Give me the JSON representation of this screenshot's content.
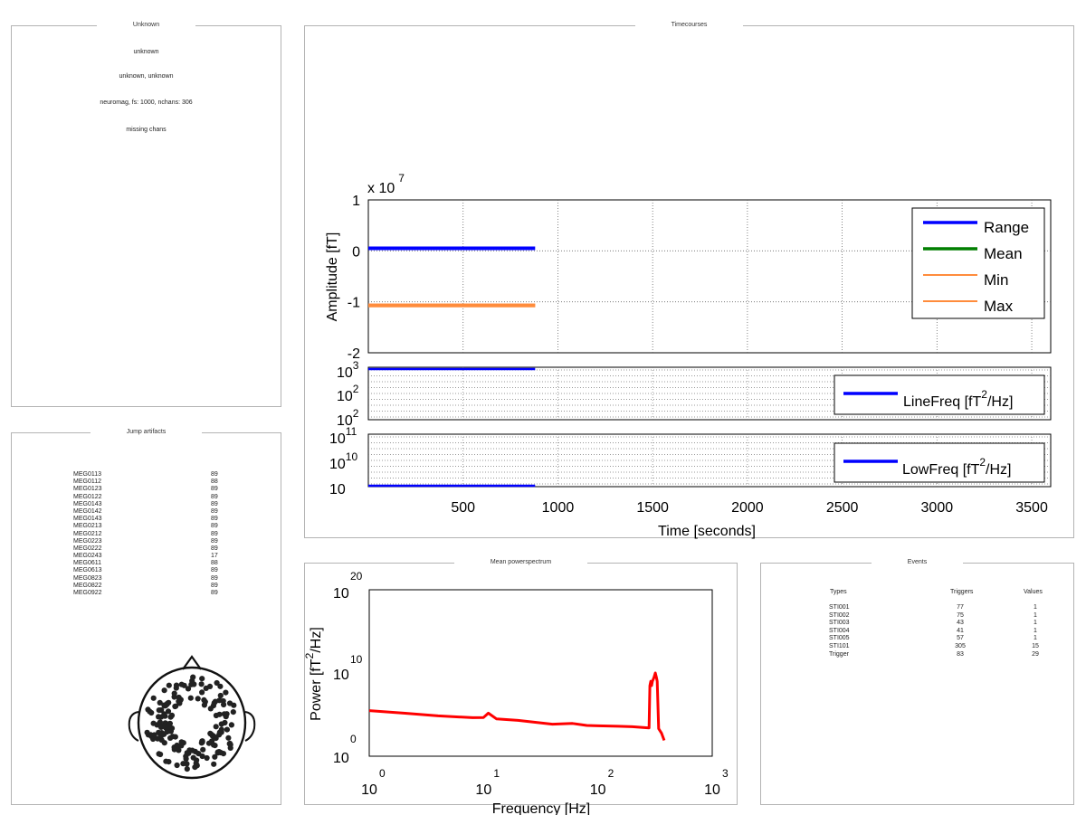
{
  "info_panel": {
    "title": "Unknown",
    "lines": [
      "unknown",
      "unknown, unknown",
      "neuromag, fs: 1000, nchans: 306",
      "missing chans"
    ]
  },
  "artifacts_panel": {
    "title": "Jump artifacts",
    "rows": [
      {
        "channel": "MEG0113",
        "count": "89"
      },
      {
        "channel": "MEG0112",
        "count": "88"
      },
      {
        "channel": "MEG0123",
        "count": "89"
      },
      {
        "channel": "MEG0122",
        "count": "89"
      },
      {
        "channel": "MEG0143",
        "count": "89"
      },
      {
        "channel": "MEG0142",
        "count": "89"
      },
      {
        "channel": "MEG0143",
        "count": "89"
      },
      {
        "channel": "MEG0213",
        "count": "89"
      },
      {
        "channel": "MEG0212",
        "count": "89"
      },
      {
        "channel": "MEG0223",
        "count": "89"
      },
      {
        "channel": "MEG0222",
        "count": "89"
      },
      {
        "channel": "MEG0243",
        "count": "17"
      },
      {
        "channel": "MEG0611",
        "count": "88"
      },
      {
        "channel": "MEG0613",
        "count": "89"
      },
      {
        "channel": "MEG0823",
        "count": "89"
      },
      {
        "channel": "MEG0822",
        "count": "89"
      },
      {
        "channel": "MEG0922",
        "count": "89"
      }
    ]
  },
  "timecourse_panel": {
    "title": "Timecourses",
    "exponent_label": "x 10",
    "exponent_sup": "7",
    "ylabel": "Amplitude [fT]",
    "xlabel": "Time [seconds]",
    "yticks_amp": [
      "1",
      "0",
      "-1",
      "-2"
    ],
    "xticks": [
      "500",
      "1000",
      "1500",
      "2000",
      "2500",
      "3000",
      "3500"
    ],
    "linefreq_ticks": [
      {
        "base": "10",
        "exp": "3"
      },
      {
        "base": "10",
        "exp": "2"
      },
      {
        "base": "10",
        "exp": "2"
      }
    ],
    "lowfreq_ticks": [
      {
        "base": "10",
        "exp": "11"
      },
      {
        "base": "10",
        "exp": "10"
      },
      {
        "base": "10",
        "exp": ""
      }
    ],
    "legend_linefreq": {
      "pre": "LineFreq [fT",
      "sup": "2",
      "post": "/Hz]"
    },
    "legend_lowfreq": {
      "pre": "LowFreq [fT",
      "sup": "2",
      "post": "/Hz]"
    }
  },
  "power_panel": {
    "title": "Mean powerspectrum",
    "ylabel_pre": "Power [fT",
    "ylabel_sup": "2",
    "ylabel_post": "/Hz]",
    "xlabel": "Frequency [Hz]",
    "yticks": [
      {
        "base": "10",
        "exp": "20"
      },
      {
        "base": "10",
        "exp": "10"
      },
      {
        "base": "10",
        "exp": "0"
      }
    ],
    "xticks": [
      {
        "base": "10",
        "exp": "0"
      },
      {
        "base": "10",
        "exp": "1"
      },
      {
        "base": "10",
        "exp": "2"
      },
      {
        "base": "10",
        "exp": "3"
      }
    ]
  },
  "events_panel": {
    "title": "Events",
    "headers": [
      "Types",
      "Triggers",
      "Values"
    ],
    "rows": [
      {
        "type": "STI001",
        "triggers": "77",
        "values": "1"
      },
      {
        "type": "STI002",
        "triggers": "75",
        "values": "1"
      },
      {
        "type": "STI003",
        "triggers": "43",
        "values": "1"
      },
      {
        "type": "STI004",
        "triggers": "41",
        "values": "1"
      },
      {
        "type": "STI005",
        "triggers": "57",
        "values": "1"
      },
      {
        "type": "STI101",
        "triggers": "305",
        "values": "15"
      },
      {
        "type": "Trigger",
        "triggers": "83",
        "values": "29"
      }
    ]
  },
  "chart_data": [
    {
      "type": "line",
      "title": "Timecourses",
      "xlabel": "Time [seconds]",
      "ylabel": "Amplitude [fT]",
      "y_multiplier": "x 10^7",
      "xlim": [
        0,
        3600
      ],
      "ylim": [
        -2,
        1
      ],
      "grid": true,
      "legend": "top-right",
      "series": [
        {
          "name": "Range",
          "color": "#0000ff",
          "x": [
            0,
            880
          ],
          "y": [
            0.05,
            0.05
          ]
        },
        {
          "name": "Mean",
          "color": "#007f00",
          "x": [],
          "y": []
        },
        {
          "name": "Min",
          "color": "#ff8c3c",
          "x": [
            0,
            880
          ],
          "y": [
            -1.07,
            -1.07
          ]
        },
        {
          "name": "Max",
          "color": "#ff8c3c",
          "x": [
            0,
            880
          ],
          "y": [
            -1.07,
            -1.07
          ]
        }
      ]
    },
    {
      "type": "line",
      "ylabel": "",
      "yscale": "log",
      "xlim": [
        0,
        3600
      ],
      "ylim": [
        100,
        1000
      ],
      "legend": "bottom-right",
      "series": [
        {
          "name": "LineFreq [fT^2/Hz]",
          "color": "#0000ff",
          "x": [
            0,
            880
          ],
          "y": [
            1000,
            1000
          ]
        }
      ]
    },
    {
      "type": "line",
      "yscale": "log",
      "xlim": [
        0,
        3600
      ],
      "ylim": [
        10,
        100000000000
      ],
      "legend": "bottom-right",
      "series": [
        {
          "name": "LowFreq [fT^2/Hz]",
          "color": "#0000ff",
          "x": [
            0,
            880
          ],
          "y": [
            10,
            10
          ]
        }
      ]
    },
    {
      "type": "line",
      "title": "Mean powerspectrum",
      "xlabel": "Frequency [Hz]",
      "ylabel": "Power [fT^2/Hz]",
      "xscale": "log",
      "yscale": "log",
      "xlim": [
        1,
        1000
      ],
      "ylim": [
        1,
        1e+20
      ],
      "series": [
        {
          "name": "power",
          "color": "#ff0000",
          "x": [
            1,
            2,
            4,
            8,
            10,
            11,
            13,
            20,
            40,
            60,
            80,
            100,
            150,
            200,
            280,
            285,
            290,
            295,
            300,
            310,
            318,
            325,
            330,
            340,
            360,
            380
          ],
          "y": [
            300000.0,
            150000.0,
            70000.0,
            43000.0,
            45000.0,
            150000.0,
            30000.0,
            20000.0,
            7000.0,
            8500.0,
            5000.0,
            4500.0,
            4000.0,
            3500.0,
            2500.0,
            300000000.0,
            1000000000.0,
            300000000.0,
            1000000000.0,
            3000000000.0,
            10000000000.0,
            3000000000.0,
            1000000000.0,
            2000.0,
            600,
            80
          ]
        }
      ]
    }
  ]
}
